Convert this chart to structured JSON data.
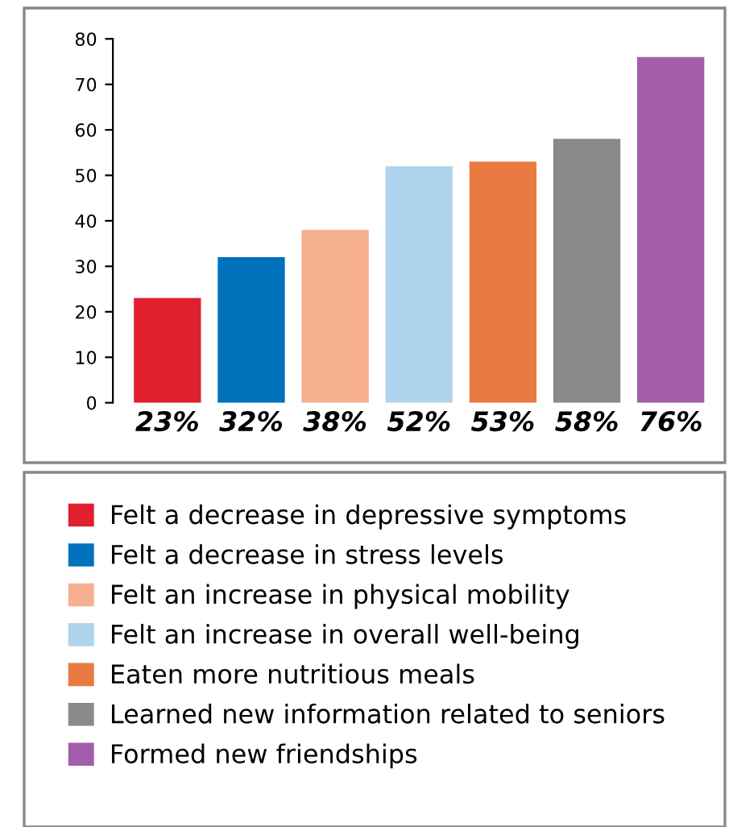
{
  "chart_data": {
    "type": "bar",
    "categories": [
      "23%",
      "32%",
      "38%",
      "52%",
      "53%",
      "58%",
      "76%"
    ],
    "series": [
      {
        "name": "Felt a decrease in depressive symptoms",
        "color": "#e0202e",
        "values": [
          23,
          null,
          null,
          null,
          null,
          null,
          null
        ]
      },
      {
        "name": "Felt a decrease in stress levels",
        "color": "#0072bc",
        "values": [
          null,
          32,
          null,
          null,
          null,
          null,
          null
        ]
      },
      {
        "name": "Felt an increase in physical mobility",
        "color": "#f7b090",
        "values": [
          null,
          null,
          38,
          null,
          null,
          null,
          null
        ]
      },
      {
        "name": "Felt an increase in overall well-being",
        "color": "#b0d4ee",
        "values": [
          null,
          null,
          null,
          52,
          null,
          null,
          null
        ]
      },
      {
        "name": "Eaten more nutritious meals",
        "color": "#e87a42",
        "values": [
          null,
          null,
          null,
          null,
          53,
          null,
          null
        ]
      },
      {
        "name": "Learned new information related to seniors",
        "color": "#8a8a8c",
        "values": [
          null,
          null,
          null,
          null,
          null,
          58,
          null
        ]
      },
      {
        "name": "Formed new friendships",
        "color": "#a25eab",
        "values": [
          null,
          null,
          null,
          null,
          null,
          null,
          76
        ]
      }
    ],
    "ylim": [
      0,
      80
    ],
    "yticks": [
      0,
      10,
      20,
      30,
      40,
      50,
      60,
      70,
      80
    ],
    "grid": false,
    "legend": "bottom"
  }
}
